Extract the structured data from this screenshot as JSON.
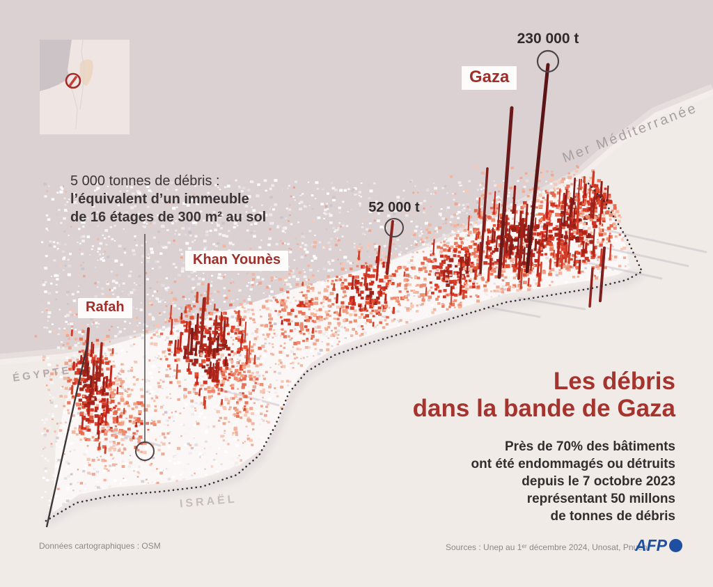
{
  "title": [
    "Les débris",
    "dans la bande de Gaza"
  ],
  "subtitle": [
    "Près de 70% des bâtiments",
    "ont été endommagés ou détruits",
    "depuis le 7 octobre 2023",
    "représentant 50 millons",
    "de tonnes de débris"
  ],
  "annotations": {
    "gaza_peak": "230 000 t",
    "mid_peak": "52 000 t",
    "equivalence": [
      "5 000 tonnes de débris :",
      "l’équivalent d’un immeuble",
      "de 16 étages de 300 m² au sol"
    ]
  },
  "place_labels": {
    "gaza": "Gaza",
    "khan_younes": "Khan Younès",
    "rafah": "Rafah",
    "egypt": "ÉGYPTE",
    "israel": "ISRAËL",
    "sea": "Mer Méditerranée"
  },
  "credits": {
    "left": "Données cartographiques : OSM",
    "right": "Sources : Unep au 1ᵉʳ décembre 2024, Unosat, Pnueh",
    "afp": "AFP"
  },
  "colors": {
    "sea": "#DBD1D2",
    "land": "#F1EBE8",
    "strip": "#FAF7F6",
    "title_red": "#A5332E",
    "label_red": "#9E2F2B",
    "debris_bright": "#D93222",
    "debris_dark": "#7C1D1B",
    "spike_maroon": "#5C1517",
    "annotation_dark": "#332E30",
    "muted_label": "#AFA5A7",
    "afp_blue": "#1F4FA0"
  }
}
